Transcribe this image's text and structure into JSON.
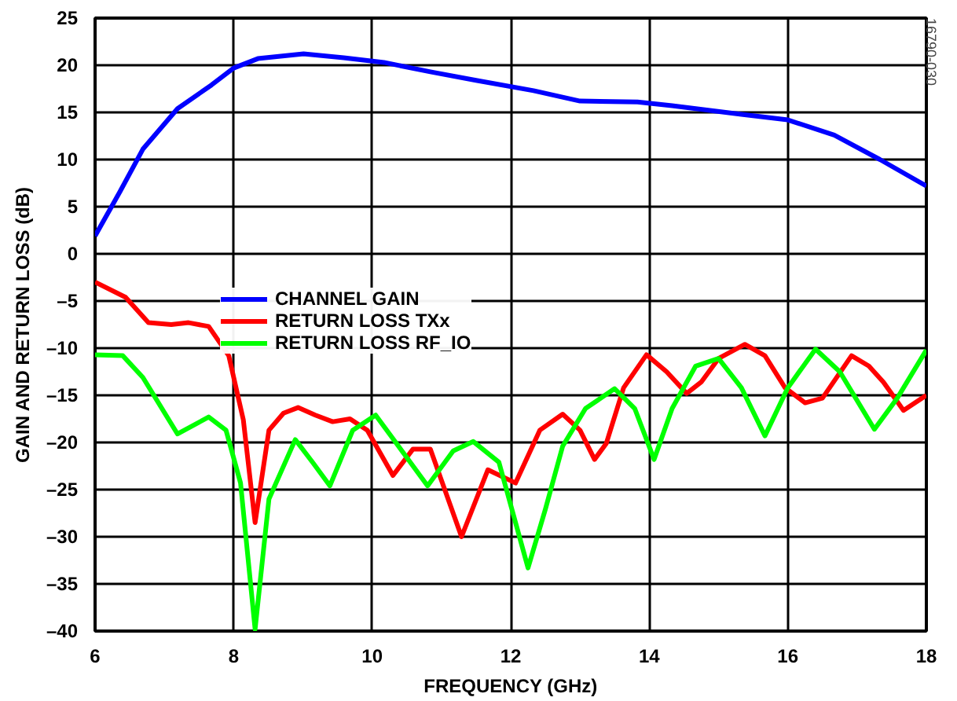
{
  "chart_data": {
    "type": "line",
    "xlabel": "FREQUENCY (GHz)",
    "ylabel": "GAIN AND RETURN LOSS (dB)",
    "xlim": [
      6,
      18
    ],
    "xticks": [
      6,
      8,
      10,
      12,
      14,
      16,
      18
    ],
    "ylim": [
      -40,
      25
    ],
    "yticks": [
      25,
      20,
      15,
      10,
      5,
      0,
      {
        "value": -5,
        "label": "–5"
      },
      {
        "value": -10,
        "label": "–10"
      },
      {
        "value": -15,
        "label": "–15"
      },
      {
        "value": -20,
        "label": "–20"
      },
      {
        "value": -25,
        "label": "–25"
      },
      {
        "value": -30,
        "label": "–30"
      },
      {
        "value": -35,
        "label": "–35"
      },
      {
        "value": -40,
        "label": "–40"
      }
    ],
    "grid": true,
    "legend": "center left",
    "marker": "none",
    "line_style": "solid",
    "annotations": [
      "16790-030"
    ],
    "series": [
      {
        "name": "CHANNEL GAIN",
        "color": "#0000ff",
        "x": [
          6.0,
          6.36,
          6.69,
          7.19,
          7.68,
          8.0,
          8.35,
          9.01,
          9.59,
          10.17,
          10.84,
          11.5,
          12.33,
          13.0,
          13.83,
          14.33,
          15.33,
          16.0,
          16.67,
          17.33,
          18.0
        ],
        "values": [
          1.9,
          6.6,
          11.1,
          15.4,
          17.9,
          19.7,
          20.7,
          21.2,
          20.8,
          20.3,
          19.3,
          18.4,
          17.3,
          16.2,
          16.1,
          15.7,
          14.8,
          14.2,
          12.6,
          10.0,
          7.2
        ]
      },
      {
        "name": "RETURN LOSS TXx",
        "color": "#ff0000",
        "x": [
          6.0,
          6.44,
          6.77,
          7.1,
          7.35,
          7.64,
          7.93,
          8.14,
          8.31,
          8.51,
          8.72,
          8.93,
          9.18,
          9.43,
          9.68,
          9.93,
          10.3,
          10.59,
          10.84,
          11.29,
          11.67,
          12.07,
          12.42,
          12.75,
          13.0,
          13.21,
          13.38,
          13.63,
          13.96,
          14.25,
          14.54,
          14.75,
          15.0,
          15.38,
          15.67,
          15.96,
          16.25,
          16.5,
          16.92,
          17.17,
          17.38,
          17.67,
          18.0
        ],
        "values": [
          -3.0,
          -4.6,
          -7.3,
          -7.5,
          -7.3,
          -7.7,
          -10.8,
          -17.6,
          -28.5,
          -18.7,
          -16.9,
          -16.3,
          -17.1,
          -17.8,
          -17.5,
          -18.7,
          -23.5,
          -20.7,
          -20.7,
          -30.0,
          -22.9,
          -24.3,
          -18.7,
          -17.0,
          -18.7,
          -21.8,
          -20.1,
          -14.2,
          -10.7,
          -12.5,
          -14.8,
          -13.6,
          -11.1,
          -9.6,
          -10.8,
          -14.2,
          -15.8,
          -15.3,
          -10.8,
          -11.9,
          -13.6,
          -16.6,
          -15.0
        ]
      },
      {
        "name": "RETURN LOSS RF_IO",
        "color": "#00ff00",
        "x": [
          6.0,
          6.4,
          6.69,
          7.19,
          7.64,
          7.89,
          8.1,
          8.31,
          8.51,
          8.89,
          9.14,
          9.39,
          9.72,
          10.05,
          10.38,
          10.8,
          11.17,
          11.46,
          11.83,
          12.25,
          12.5,
          12.75,
          13.08,
          13.5,
          13.79,
          14.07,
          14.33,
          14.67,
          15.0,
          15.33,
          15.67,
          16.0,
          16.4,
          16.75,
          17.25,
          17.58,
          18.0
        ],
        "values": [
          -10.7,
          -10.8,
          -13.1,
          -19.1,
          -17.3,
          -18.7,
          -24.3,
          -39.8,
          -26.0,
          -19.7,
          -22.1,
          -24.6,
          -18.7,
          -17.1,
          -20.4,
          -24.6,
          -20.9,
          -19.9,
          -22.1,
          -33.3,
          -27.1,
          -20.4,
          -16.4,
          -14.3,
          -16.4,
          -21.8,
          -16.4,
          -11.9,
          -11.1,
          -14.2,
          -19.3,
          -14.2,
          -10.1,
          -12.5,
          -18.6,
          -15.3,
          -10.2
        ]
      }
    ]
  }
}
